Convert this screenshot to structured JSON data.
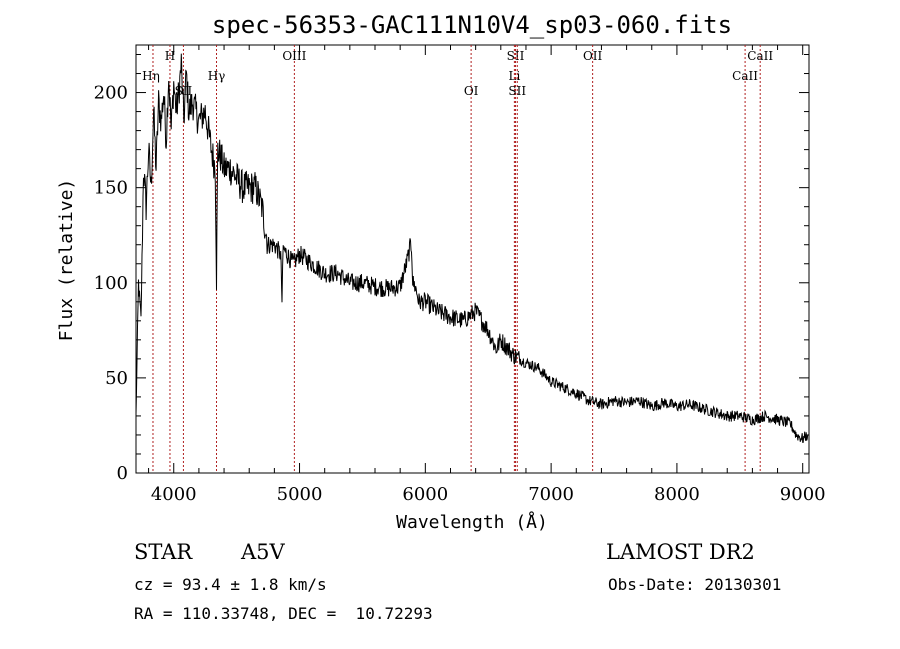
{
  "chart_data": {
    "type": "line",
    "title": "spec-56353-GAC111N10V4_sp03-060.fits",
    "xlabel": "Wavelength (Å)",
    "ylabel": "Flux (relative)",
    "xlim": [
      3700,
      9050
    ],
    "ylim": [
      0,
      225
    ],
    "xticks": [
      4000,
      5000,
      6000,
      7000,
      8000,
      9000
    ],
    "yticks": [
      0,
      50,
      100,
      150,
      200
    ],
    "grid": false,
    "series": [
      {
        "x": [
          3700,
          3720,
          3740,
          3760,
          3780,
          3800,
          3820,
          3840,
          3860,
          3880,
          3900,
          3920,
          3940,
          3960,
          3980,
          4000,
          4020,
          4040,
          4060,
          4080,
          4100,
          4120,
          4150,
          4200,
          4250,
          4300,
          4330,
          4340,
          4350,
          4380,
          4400,
          4450,
          4500,
          4550,
          4600,
          4650,
          4700,
          4750,
          4800,
          4850,
          4861,
          4870,
          4900,
          4950,
          5000,
          5100,
          5200,
          5300,
          5400,
          5500,
          5600,
          5700,
          5800,
          5850,
          5890,
          5900,
          5920,
          5950,
          6000,
          6100,
          6200,
          6300,
          6400,
          6500,
          6563,
          6600,
          6700,
          6800,
          6900,
          7000,
          7100,
          7200,
          7300,
          7400,
          7500,
          7600,
          7700,
          7800,
          7900,
          8000,
          8100,
          8200,
          8300,
          8400,
          8500,
          8600,
          8700,
          8800,
          8900,
          8950,
          9000,
          9040
        ],
        "y": [
          30,
          100,
          80,
          160,
          140,
          170,
          150,
          190,
          160,
          195,
          185,
          200,
          175,
          210,
          180,
          205,
          190,
          200,
          215,
          185,
          210,
          190,
          195,
          185,
          190,
          170,
          160,
          100,
          170,
          165,
          160,
          160,
          155,
          150,
          150,
          150,
          140,
          120,
          120,
          115,
          90,
          118,
          115,
          110,
          115,
          110,
          105,
          105,
          100,
          100,
          98,
          97,
          98,
          110,
          122,
          100,
          98,
          90,
          90,
          85,
          82,
          80,
          85,
          75,
          65,
          70,
          62,
          58,
          55,
          48,
          45,
          42,
          38,
          36,
          38,
          37,
          38,
          35,
          37,
          35,
          36,
          34,
          32,
          30,
          30,
          28,
          30,
          28,
          26,
          20,
          18,
          20
        ]
      }
    ],
    "line_markers": [
      {
        "wl": 3835,
        "label": "Hη"
      },
      {
        "wl": 3970,
        "label": "H"
      },
      {
        "wl": 4077,
        "label": "SII"
      },
      {
        "wl": 4340,
        "label": "Hγ"
      },
      {
        "wl": 4959,
        "label": "OIII"
      },
      {
        "wl": 6364,
        "label": "OI"
      },
      {
        "wl": 6708,
        "label": "Li"
      },
      {
        "wl": 6717,
        "label": "SII"
      },
      {
        "wl": 6731,
        "label": "SII"
      },
      {
        "wl": 7330,
        "label": "OII"
      },
      {
        "wl": 8542,
        "label": "CaII"
      },
      {
        "wl": 8662,
        "label": "CaII"
      }
    ]
  },
  "info": {
    "class": "STAR",
    "subclass": "A5V",
    "survey": "LAMOST DR2",
    "cz": "cz = 93.4 ± 1.8 km/s",
    "obs_date": "Obs-Date: 20130301",
    "coords": "RA = 110.33748, DEC =  10.72293"
  }
}
